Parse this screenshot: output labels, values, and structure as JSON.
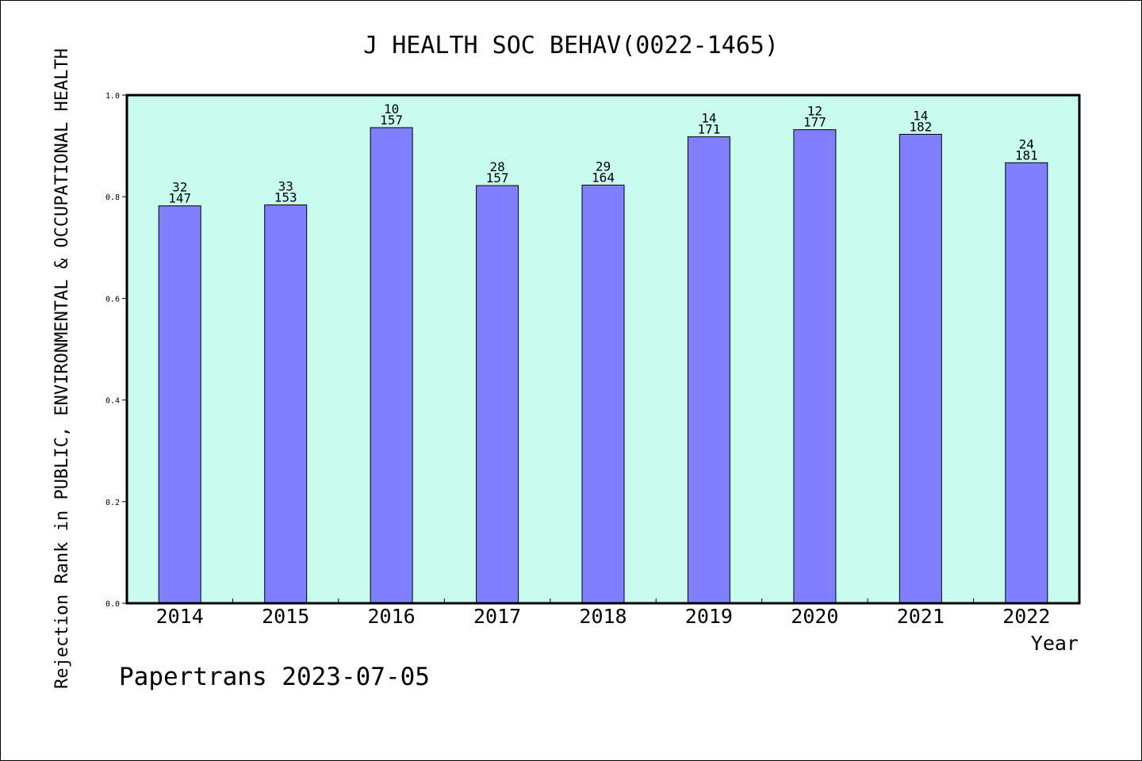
{
  "chart_data": {
    "type": "bar",
    "title": "J HEALTH SOC BEHAV(0022-1465)",
    "xlabel": "Year",
    "ylabel": "Rejection Rank in PUBLIC, ENVIRONMENTAL & OCCUPATIONAL HEALTH",
    "ylim": [
      0,
      1.0
    ],
    "yticks": [
      "0.0",
      "0.2",
      "0.4",
      "0.6",
      "0.8",
      "1.0"
    ],
    "categories": [
      "2014",
      "2015",
      "2016",
      "2017",
      "2018",
      "2019",
      "2020",
      "2021",
      "2022"
    ],
    "values": [
      0.782,
      0.784,
      0.936,
      0.822,
      0.823,
      0.918,
      0.932,
      0.923,
      0.867
    ],
    "bar_labels": [
      {
        "rank": "32",
        "total": "147"
      },
      {
        "rank": "33",
        "total": "153"
      },
      {
        "rank": "10",
        "total": "157"
      },
      {
        "rank": "28",
        "total": "157"
      },
      {
        "rank": "29",
        "total": "164"
      },
      {
        "rank": "14",
        "total": "171"
      },
      {
        "rank": "12",
        "total": "177"
      },
      {
        "rank": "14",
        "total": "182"
      },
      {
        "rank": "24",
        "total": "181"
      }
    ],
    "grid": false,
    "colors": {
      "bar": "#8080ff",
      "plot_background": "#c8fcee",
      "axis": "#000000"
    }
  },
  "footer": "Papertrans 2023-07-05"
}
